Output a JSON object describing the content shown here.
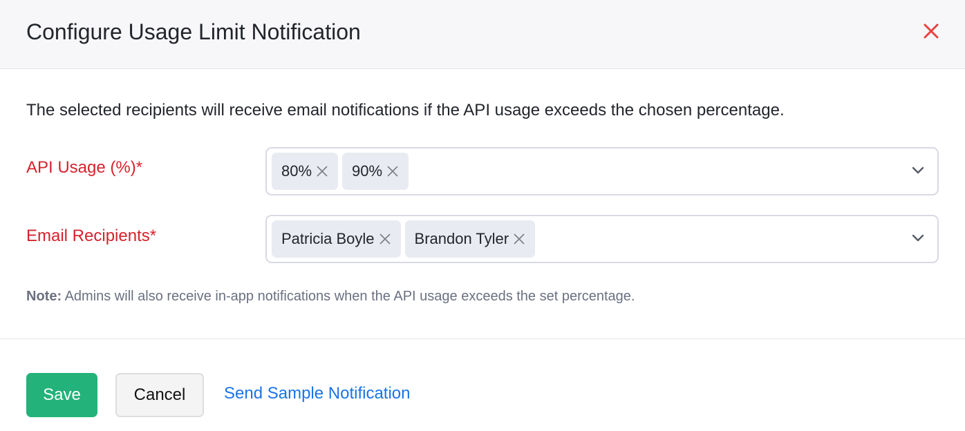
{
  "dialog": {
    "title": "Configure Usage Limit Notification",
    "close_icon": "close-icon",
    "close_color": "#e8423f"
  },
  "description": "The selected recipients will receive email notifications if the API usage exceeds the chosen percentage.",
  "fields": [
    {
      "label": "API Usage (%)*",
      "tags": [
        "80%",
        "90%"
      ]
    },
    {
      "label": "Email Recipients*",
      "tags": [
        "Patricia Boyle",
        "Brandon Tyler"
      ]
    }
  ],
  "note": {
    "prefix": "Note:",
    "text": " Admins will also receive in-app notifications when the API usage exceeds the set percentage."
  },
  "footer": {
    "save": "Save",
    "cancel": "Cancel",
    "link": "Send Sample Notification"
  },
  "colors": {
    "save": "#22b27a",
    "link": "#1a73e8",
    "required_label": "#d6222c"
  }
}
